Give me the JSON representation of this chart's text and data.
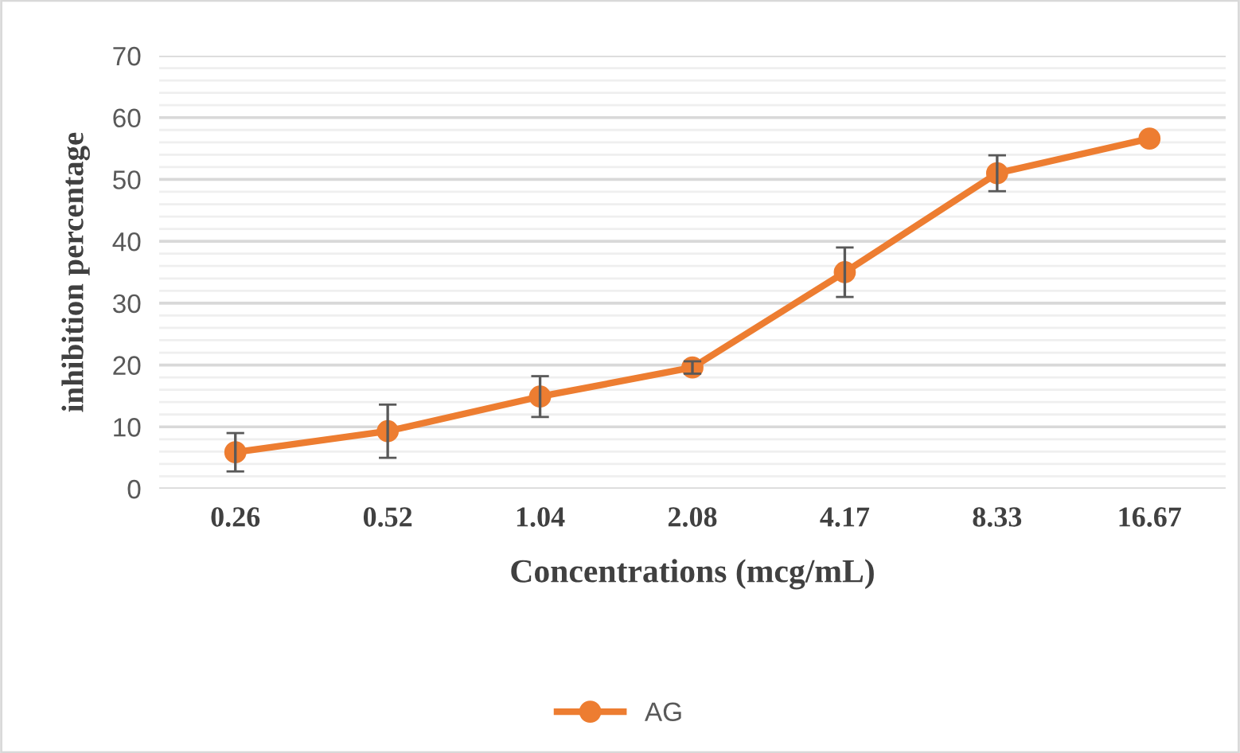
{
  "chart_data": {
    "type": "line",
    "xlabel": "Concentrations (mcg/mL)",
    "ylabel": "inhibition percentage",
    "categories": [
      "0.26",
      "0.52",
      "1.04",
      "2.08",
      "4.17",
      "8.33",
      "16.67"
    ],
    "series": [
      {
        "name": "AG",
        "color": "#ed7d31",
        "values": [
          5.9,
          9.3,
          14.9,
          19.6,
          35.0,
          51.0,
          56.6
        ],
        "errors": [
          3.1,
          4.3,
          3.3,
          1.0,
          4.0,
          2.9,
          null
        ]
      }
    ],
    "ylim": [
      0,
      70
    ],
    "yticks": [
      0,
      {
        "value": 2,
        "label": null
      },
      {
        "value": 4,
        "label": null
      },
      {
        "value": 6,
        "label": null
      },
      {
        "value": 8,
        "label": null
      },
      10,
      {
        "value": 12,
        "label": null
      },
      {
        "value": 14,
        "label": null
      },
      {
        "value": 16,
        "label": null
      },
      {
        "value": 18,
        "label": null
      },
      20,
      {
        "value": 22,
        "label": null
      },
      {
        "value": 24,
        "label": null
      },
      {
        "value": 26,
        "label": null
      },
      {
        "value": 28,
        "label": null
      },
      30,
      {
        "value": 32,
        "label": null
      },
      {
        "value": 34,
        "label": null
      },
      {
        "value": 36,
        "label": null
      },
      {
        "value": 38,
        "label": null
      },
      40,
      {
        "value": 42,
        "label": null
      },
      {
        "value": 44,
        "label": null
      },
      {
        "value": 46,
        "label": null
      },
      {
        "value": 48,
        "label": null
      },
      50,
      {
        "value": 52,
        "label": null
      },
      {
        "value": 54,
        "label": null
      },
      {
        "value": 56,
        "label": null
      },
      {
        "value": 58,
        "label": null
      },
      60,
      {
        "value": 62,
        "label": null
      },
      {
        "value": 64,
        "label": null
      },
      {
        "value": 66,
        "label": null
      },
      {
        "value": 68,
        "label": null
      },
      70
    ],
    "grid": "y",
    "legend": "bottom",
    "marker": "circle",
    "line_style": "solid"
  }
}
